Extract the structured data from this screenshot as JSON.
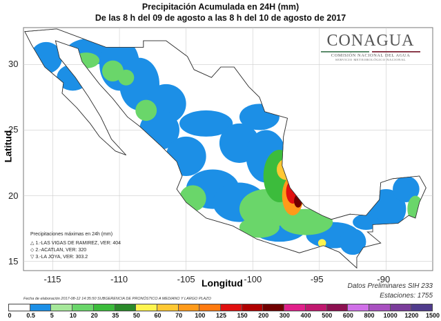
{
  "title": {
    "line1": "Precipitación Acumulada en 24H (mm)",
    "line2": "De las 8 h del 09 de agosto  a las 8 h del 10 de agosto de 2017"
  },
  "logo": {
    "name": "CONAGUA",
    "line1": "COMISIÓN NACIONAL DEL AGUA",
    "line2": "SERVICIO METEOROLÓGICO NACIONAL",
    "bar_colors": [
      "#5a8a6a",
      "#8a3a4a"
    ]
  },
  "axes": {
    "xlabel": "Longitud",
    "ylabel": "Latitud",
    "xlim": [
      -117.2,
      -86.5
    ],
    "ylim": [
      14.3,
      32.8
    ],
    "xticks": [
      "-115",
      "-110",
      "-105",
      "-100",
      "-95",
      "-90"
    ],
    "yticks": [
      "15",
      "20",
      "25",
      "30"
    ],
    "grid": true
  },
  "legend": {
    "header": "Precipitaciones máximas en 24h (mm)",
    "items": [
      {
        "symbol": "△",
        "text": "1.-LAS VIGAS DE RAMIREZ, VER: 404"
      },
      {
        "symbol": "◇",
        "text": "2.-ACATLAN, VER: 320"
      },
      {
        "symbol": "▽",
        "text": "3.-LA JOYA, VER: 303.2"
      }
    ]
  },
  "footer": {
    "fecha": "Fecha de elaboración 2017-08-12 14:35:50 SUBGERENCIA DE PRONÓSTICO A MEDIANO Y LARGO PLAZO",
    "datos": "Datos Preliminares SIH 233",
    "estaciones": "Estaciones:  1755"
  },
  "colorbar": {
    "labels": [
      "0",
      "0.5",
      "5",
      "10",
      "20",
      "35",
      "50",
      "60",
      "70",
      "100",
      "125",
      "150",
      "200",
      "300",
      "400",
      "500",
      "600",
      "800",
      "1000",
      "1200",
      "1500"
    ],
    "colors": [
      "#ffffff",
      "#1c8fe6",
      "#a6e89a",
      "#6ad66a",
      "#3cbc3c",
      "#2a8a2a",
      "#fff44f",
      "#ffc833",
      "#ff9a1a",
      "#ff7a10",
      "#e01010",
      "#b00000",
      "#700000",
      "#e0208a",
      "#c0186e",
      "#8c1050",
      "#d070e8",
      "#a850c0",
      "#7a3c9a",
      "#503c8c"
    ]
  },
  "rain_areas": [
    [
      -115.5,
      30.5,
      1.2,
      1.2,
      "#1c8fe6"
    ],
    [
      -113.5,
      29,
      1.2,
      1,
      "#1c8fe6"
    ],
    [
      -112,
      31,
      2,
      1,
      "#1c8fe6"
    ],
    [
      -110,
      30,
      1.5,
      2,
      "#1c8fe6"
    ],
    [
      -108.5,
      28.5,
      1.5,
      2,
      "#1c8fe6"
    ],
    [
      -106.5,
      27,
      1.5,
      1.5,
      "#1c8fe6"
    ],
    [
      -107,
      25,
      1.5,
      1.5,
      "#1c8fe6"
    ],
    [
      -105,
      23,
      1.5,
      1.5,
      "#1c8fe6"
    ],
    [
      -103.5,
      25.5,
      2,
      1,
      "#1c8fe6"
    ],
    [
      -101,
      24,
      1.5,
      1.5,
      "#1c8fe6"
    ],
    [
      -99.5,
      26,
      1.5,
      1,
      "#1c8fe6"
    ],
    [
      -99,
      23,
      1.5,
      2,
      "#1c8fe6"
    ],
    [
      -103,
      20.5,
      2,
      1.5,
      "#1c8fe6"
    ],
    [
      -101,
      19.5,
      2,
      1.5,
      "#1c8fe6"
    ],
    [
      -98,
      17.5,
      2,
      1,
      "#1c8fe6"
    ],
    [
      -94,
      17,
      2,
      1,
      "#1c8fe6"
    ],
    [
      -92.5,
      16.5,
      1,
      1,
      "#1c8fe6"
    ],
    [
      -90,
      19,
      1.5,
      1.5,
      "#1c8fe6"
    ],
    [
      -88.5,
      20.5,
      1,
      1,
      "#1c8fe6"
    ],
    [
      -91.5,
      18,
      1,
      0.6,
      "#1c8fe6"
    ],
    [
      -110.5,
      29.5,
      0.8,
      0.8,
      "#6ad66a"
    ],
    [
      -112.5,
      30.3,
      1,
      0.6,
      "#6ad66a"
    ],
    [
      -104.5,
      19.8,
      1,
      1,
      "#6ad66a"
    ],
    [
      -99,
      19,
      2,
      1.5,
      "#6ad66a"
    ],
    [
      -98,
      21.5,
      1.2,
      2,
      "#3cbc3c"
    ],
    [
      -96,
      18,
      2,
      1,
      "#6ad66a"
    ],
    [
      -99.5,
      17.6,
      1.5,
      0.8,
      "#6ad66a"
    ],
    [
      -87.8,
      19,
      0.6,
      1,
      "#6ad66a"
    ],
    [
      -108,
      26.5,
      0.8,
      0.8,
      "#6ad66a"
    ],
    [
      -109.5,
      29,
      0.6,
      0.6,
      "#6ad66a"
    ],
    [
      -97.5,
      22,
      0.7,
      0.8,
      "#ffc833"
    ],
    [
      -97,
      20,
      0.8,
      1.5,
      "#ff9a1a"
    ],
    [
      -97,
      20.3,
      0.5,
      0.9,
      "#e01010"
    ],
    [
      -96.6,
      19.6,
      0.3,
      0.5,
      "#700000"
    ],
    [
      -94.8,
      16.4,
      0.3,
      0.3,
      "#fff44f"
    ]
  ]
}
